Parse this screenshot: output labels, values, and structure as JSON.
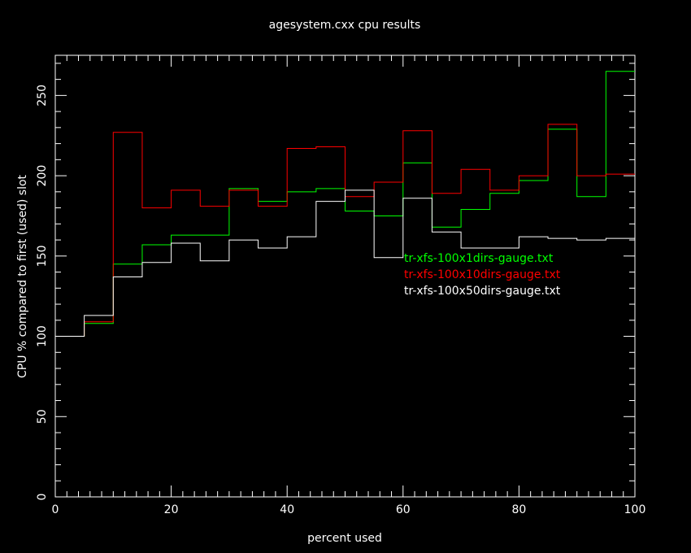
{
  "chart_data": {
    "type": "line",
    "step": true,
    "title": "agesystem.cxx cpu results",
    "xlabel": "percent used",
    "ylabel": "CPU % compared to first (used) slot",
    "xlim": [
      0,
      100
    ],
    "ylim": [
      0,
      275
    ],
    "xticks": [
      0,
      20,
      40,
      60,
      80,
      100
    ],
    "yticks": [
      0,
      50,
      100,
      150,
      200,
      250
    ],
    "x_edges": [
      0,
      5,
      10,
      15,
      20,
      25,
      30,
      35,
      40,
      45,
      50,
      55,
      60,
      65,
      70,
      75,
      80,
      85,
      90,
      95,
      100
    ],
    "legend_position": "center-right",
    "series": [
      {
        "name": "tr-xfs-100x1dirs-gauge.txt",
        "color": "#00ff00",
        "values": [
          100,
          108,
          145,
          157,
          163,
          163,
          192,
          184,
          190,
          192,
          178,
          175,
          208,
          168,
          179,
          189,
          197,
          229,
          187,
          265
        ]
      },
      {
        "name": "tr-xfs-100x10dirs-gauge.txt",
        "color": "#ff0000",
        "values": [
          100,
          109,
          227,
          180,
          191,
          181,
          191,
          181,
          217,
          218,
          187,
          196,
          228,
          189,
          204,
          191,
          200,
          232,
          200,
          201
        ]
      },
      {
        "name": "tr-xfs-100x50dirs-gauge.txt",
        "color": "#ffffff",
        "values": [
          100,
          113,
          137,
          146,
          158,
          147,
          160,
          155,
          162,
          184,
          191,
          149,
          186,
          165,
          155,
          155,
          162,
          161,
          160,
          161
        ]
      }
    ]
  }
}
